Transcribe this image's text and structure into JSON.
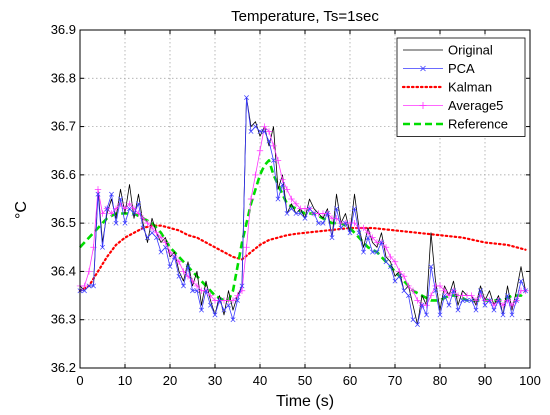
{
  "chart_data": {
    "type": "line",
    "title": "Temperature, Ts=1sec",
    "xlabel": "Time (s)",
    "ylabel": "°C",
    "xlim": [
      0,
      100
    ],
    "ylim": [
      36.2,
      36.9
    ],
    "xticks": [
      0,
      10,
      20,
      30,
      40,
      50,
      60,
      70,
      80,
      90,
      100
    ],
    "yticks": [
      36.2,
      36.3,
      36.4,
      36.5,
      36.6,
      36.7,
      36.8,
      36.9
    ],
    "grid": true,
    "legend_position": "top-right",
    "series": [
      {
        "name": "Original",
        "color": "#000000",
        "style": "solid",
        "x": [
          0,
          1,
          2,
          3,
          4,
          5,
          6,
          7,
          8,
          9,
          10,
          11,
          12,
          13,
          14,
          15,
          16,
          17,
          18,
          19,
          20,
          21,
          22,
          23,
          24,
          25,
          26,
          27,
          28,
          29,
          30,
          31,
          32,
          33,
          34,
          35,
          36,
          37,
          38,
          39,
          40,
          41,
          42,
          43,
          44,
          45,
          46,
          47,
          48,
          49,
          50,
          51,
          52,
          53,
          54,
          55,
          56,
          57,
          58,
          59,
          60,
          61,
          62,
          63,
          64,
          65,
          66,
          67,
          68,
          69,
          70,
          71,
          72,
          73,
          74,
          75,
          76,
          77,
          78,
          79,
          80,
          81,
          82,
          83,
          84,
          85,
          86,
          87,
          88,
          89,
          90,
          91,
          92,
          93,
          94,
          95,
          96,
          97,
          98,
          99
        ],
        "values": [
          36.37,
          36.36,
          36.37,
          36.37,
          36.57,
          36.46,
          36.52,
          36.55,
          36.51,
          36.57,
          36.52,
          36.58,
          36.51,
          36.56,
          36.5,
          36.46,
          36.51,
          36.48,
          36.46,
          36.47,
          36.43,
          36.44,
          36.4,
          36.38,
          36.42,
          36.37,
          36.4,
          36.33,
          36.38,
          36.34,
          36.31,
          36.35,
          36.31,
          36.36,
          36.32,
          36.35,
          36.37,
          36.76,
          36.7,
          36.71,
          36.68,
          36.7,
          36.66,
          36.7,
          36.57,
          36.6,
          36.52,
          36.54,
          36.52,
          36.53,
          36.51,
          36.55,
          36.53,
          36.52,
          36.51,
          36.53,
          36.47,
          36.56,
          36.5,
          36.52,
          36.48,
          36.56,
          36.49,
          36.45,
          36.49,
          36.46,
          36.45,
          36.48,
          36.43,
          36.42,
          36.39,
          36.4,
          36.36,
          36.37,
          36.33,
          36.29,
          36.35,
          36.33,
          36.48,
          36.38,
          36.32,
          36.37,
          36.35,
          36.38,
          36.33,
          36.36,
          36.35,
          36.35,
          36.33,
          36.37,
          36.34,
          36.36,
          36.33,
          36.35,
          36.31,
          36.37,
          36.32,
          36.36,
          36.41,
          36.36
        ]
      },
      {
        "name": "PCA",
        "color": "#3a3aff",
        "style": "solid-x",
        "x": [
          0,
          1,
          2,
          3,
          4,
          5,
          6,
          7,
          8,
          9,
          10,
          11,
          12,
          13,
          14,
          15,
          16,
          17,
          18,
          19,
          20,
          21,
          22,
          23,
          24,
          25,
          26,
          27,
          28,
          29,
          30,
          31,
          32,
          33,
          34,
          35,
          36,
          37,
          38,
          39,
          40,
          41,
          42,
          43,
          44,
          45,
          46,
          47,
          48,
          49,
          50,
          51,
          52,
          53,
          54,
          55,
          56,
          57,
          58,
          59,
          60,
          61,
          62,
          63,
          64,
          65,
          66,
          67,
          68,
          69,
          70,
          71,
          72,
          73,
          74,
          75,
          76,
          77,
          78,
          79,
          80,
          81,
          82,
          83,
          84,
          85,
          86,
          87,
          88,
          89,
          90,
          91,
          92,
          93,
          94,
          95,
          96,
          97,
          98,
          99
        ],
        "values": [
          36.36,
          36.36,
          36.37,
          36.37,
          36.56,
          36.45,
          36.53,
          36.56,
          36.5,
          36.55,
          36.5,
          36.53,
          36.52,
          36.54,
          36.49,
          36.47,
          36.48,
          36.47,
          36.44,
          36.45,
          36.41,
          36.43,
          36.39,
          36.37,
          36.41,
          36.36,
          36.36,
          36.32,
          36.36,
          36.33,
          36.31,
          36.34,
          36.32,
          36.33,
          36.3,
          36.34,
          36.37,
          36.76,
          36.69,
          36.7,
          36.69,
          36.69,
          36.67,
          36.63,
          36.55,
          36.58,
          36.52,
          36.53,
          36.52,
          36.52,
          36.51,
          36.53,
          36.52,
          36.5,
          36.5,
          36.52,
          36.47,
          36.53,
          36.49,
          36.5,
          36.48,
          36.53,
          36.48,
          36.44,
          36.47,
          36.44,
          36.44,
          36.46,
          36.42,
          36.41,
          36.38,
          36.39,
          36.36,
          36.35,
          36.3,
          36.29,
          36.33,
          36.31,
          36.41,
          36.36,
          36.31,
          36.35,
          36.33,
          36.36,
          36.32,
          36.34,
          36.34,
          36.34,
          36.32,
          36.36,
          36.33,
          36.34,
          36.32,
          36.34,
          36.31,
          36.35,
          36.31,
          36.34,
          36.38,
          36.36
        ]
      },
      {
        "name": "Kalman",
        "color": "#ff0000",
        "style": "dotted",
        "x": [
          0,
          2,
          4,
          6,
          8,
          10,
          12,
          14,
          16,
          18,
          20,
          22,
          24,
          26,
          28,
          30,
          32,
          34,
          36,
          38,
          40,
          42,
          44,
          46,
          48,
          50,
          55,
          60,
          62,
          65,
          70,
          75,
          80,
          85,
          90,
          95,
          99
        ],
        "values": [
          36.36,
          36.37,
          36.4,
          36.43,
          36.455,
          36.47,
          36.48,
          36.49,
          36.495,
          36.495,
          36.49,
          36.485,
          36.475,
          36.47,
          36.46,
          36.45,
          36.44,
          36.43,
          36.425,
          36.44,
          36.455,
          36.465,
          36.47,
          36.475,
          36.478,
          36.48,
          36.485,
          36.49,
          36.49,
          36.49,
          36.485,
          36.48,
          36.475,
          36.47,
          36.46,
          36.455,
          36.445
        ]
      },
      {
        "name": "Average5",
        "color": "#ff33ff",
        "style": "solid-plus",
        "x": [
          0,
          1,
          2,
          3,
          4,
          5,
          6,
          7,
          8,
          9,
          10,
          11,
          12,
          13,
          14,
          15,
          16,
          17,
          18,
          19,
          20,
          21,
          22,
          23,
          24,
          25,
          26,
          27,
          28,
          29,
          30,
          31,
          32,
          33,
          34,
          35,
          36,
          37,
          38,
          39,
          40,
          41,
          42,
          43,
          44,
          45,
          46,
          47,
          48,
          49,
          50,
          51,
          52,
          53,
          54,
          55,
          56,
          57,
          58,
          59,
          60,
          61,
          62,
          63,
          64,
          65,
          66,
          67,
          68,
          69,
          70,
          71,
          72,
          73,
          74,
          75,
          76,
          77,
          78,
          79,
          80,
          81,
          82,
          83,
          84,
          85,
          86,
          87,
          88,
          89,
          90,
          91,
          92,
          93,
          94,
          95,
          96,
          97,
          98,
          99
        ],
        "values": [
          36.37,
          36.37,
          36.4,
          36.45,
          36.57,
          36.52,
          36.53,
          36.52,
          36.53,
          36.54,
          36.53,
          36.54,
          36.53,
          36.52,
          36.51,
          36.5,
          36.49,
          36.48,
          36.47,
          36.46,
          36.44,
          36.43,
          36.42,
          36.4,
          36.39,
          36.38,
          36.37,
          36.36,
          36.36,
          36.35,
          36.34,
          36.34,
          36.34,
          36.34,
          36.34,
          36.35,
          36.36,
          36.45,
          36.55,
          36.6,
          36.65,
          36.7,
          36.69,
          36.66,
          36.63,
          36.59,
          36.57,
          36.55,
          36.54,
          36.53,
          36.53,
          36.53,
          36.52,
          36.52,
          36.52,
          36.52,
          36.51,
          36.51,
          36.5,
          36.5,
          36.5,
          36.5,
          36.49,
          36.49,
          36.48,
          36.47,
          36.46,
          36.46,
          36.45,
          36.43,
          36.42,
          36.4,
          36.39,
          36.37,
          36.36,
          36.34,
          36.33,
          36.33,
          36.35,
          36.37,
          36.37,
          36.36,
          36.35,
          36.36,
          36.35,
          36.35,
          36.35,
          36.35,
          36.34,
          36.35,
          36.34,
          36.34,
          36.33,
          36.34,
          36.33,
          36.34,
          36.33,
          36.34,
          36.36,
          36.36
        ]
      },
      {
        "name": "Reference",
        "color": "#00dd00",
        "style": "dashed",
        "x": [
          0,
          2,
          4,
          6,
          8,
          10,
          12,
          14,
          16,
          18,
          20,
          22,
          24,
          26,
          28,
          30,
          32,
          33,
          34,
          35,
          36,
          37,
          38,
          39,
          40,
          41,
          42,
          43,
          44,
          45,
          46,
          48,
          50,
          52,
          54,
          56,
          58,
          60,
          62,
          64,
          66,
          68,
          70,
          72,
          74,
          76,
          78,
          80,
          82,
          84,
          86,
          88,
          90,
          92,
          94,
          96,
          98,
          99
        ],
        "values": [
          36.45,
          36.47,
          36.49,
          36.51,
          36.52,
          36.52,
          36.52,
          36.51,
          36.5,
          36.48,
          36.45,
          36.43,
          36.41,
          36.39,
          36.37,
          36.35,
          36.34,
          36.34,
          36.36,
          36.41,
          36.46,
          36.5,
          36.54,
          36.57,
          36.6,
          36.62,
          36.63,
          36.6,
          36.58,
          36.56,
          36.54,
          36.53,
          36.52,
          36.52,
          36.51,
          36.5,
          36.5,
          36.49,
          36.47,
          36.45,
          36.44,
          36.42,
          36.4,
          36.38,
          36.36,
          36.35,
          36.34,
          36.34,
          36.35,
          36.35,
          36.34,
          36.34,
          36.34,
          36.34,
          36.34,
          36.35,
          36.35,
          36.36
        ]
      }
    ]
  }
}
